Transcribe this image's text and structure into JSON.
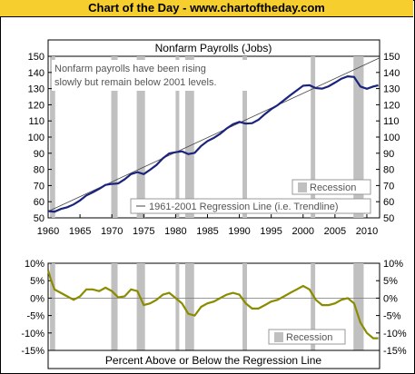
{
  "banner": "Chart of the Day - www.chartoftheday.com",
  "chart_data": [
    {
      "type": "line",
      "title": "Nonfarm Payrolls (Jobs)",
      "annotation_lines": [
        "Nonfarm payrolls have been rising",
        "slowly but remain below 2001 levels."
      ],
      "xlim": [
        1960,
        2012
      ],
      "ylim": [
        50,
        150
      ],
      "x_ticks": [
        "1960",
        "1965",
        "1970",
        "1975",
        "1980",
        "1985",
        "1990",
        "1995",
        "2000",
        "2005",
        "2010"
      ],
      "y_ticks": [
        "50",
        "60",
        "70",
        "80",
        "90",
        "100",
        "110",
        "120",
        "130",
        "140",
        "150"
      ],
      "legend": {
        "recession": "Recession",
        "trendline": "1961-2001 Regression Line (i.e. Trendline)"
      },
      "recessions": [
        [
          1960.3,
          1961.1
        ],
        [
          1969.9,
          1970.9
        ],
        [
          1973.9,
          1975.2
        ],
        [
          1980.0,
          1980.5
        ],
        [
          1981.5,
          1982.9
        ],
        [
          1990.5,
          1991.2
        ],
        [
          2001.2,
          2001.9
        ],
        [
          2007.9,
          2009.5
        ]
      ],
      "trendline": [
        [
          1960,
          54
        ],
        [
          2012,
          149
        ]
      ],
      "series": [
        {
          "name": "Nonfarm Payrolls",
          "color": "#1a237e",
          "x": [
            1960,
            1961,
            1962,
            1963,
            1964,
            1965,
            1966,
            1967,
            1968,
            1969,
            1970,
            1971,
            1972,
            1973,
            1974,
            1975,
            1976,
            1977,
            1978,
            1979,
            1980,
            1981,
            1982,
            1983,
            1984,
            1985,
            1986,
            1987,
            1988,
            1989,
            1990,
            1991,
            1992,
            1993,
            1994,
            1995,
            1996,
            1997,
            1998,
            1999,
            2000,
            2001,
            2002,
            2003,
            2004,
            2005,
            2006,
            2007,
            2008,
            2009,
            2010,
            2011,
            2011.8
          ],
          "y": [
            54.2,
            53.8,
            55.5,
            56.6,
            58.3,
            60.8,
            63.9,
            65.8,
            67.9,
            70.4,
            71.0,
            71.3,
            73.8,
            77.1,
            78.3,
            77.1,
            79.8,
            82.7,
            86.8,
            89.9,
            90.6,
            91.2,
            89.5,
            90.2,
            94.5,
            97.5,
            99.5,
            102.1,
            105.3,
            107.9,
            109.4,
            108.3,
            108.6,
            110.7,
            114.2,
            117.3,
            119.7,
            122.8,
            125.9,
            128.9,
            131.8,
            132.1,
            130.3,
            130.0,
            131.4,
            133.7,
            136.1,
            137.6,
            137.2,
            131.3,
            129.9,
            131.3,
            132.0
          ]
        }
      ]
    },
    {
      "type": "line",
      "xlabel": "Percent Above or Below the Regression Line",
      "xlim": [
        1960,
        2012
      ],
      "ylim": [
        -15,
        10
      ],
      "y_ticks": [
        "10%",
        "5%",
        "0%",
        "-5%",
        "-10%",
        "-15%"
      ],
      "legend": {
        "recession": "Recession"
      },
      "series": [
        {
          "name": "Percent above/below trendline",
          "color": "#8b8b00",
          "x": [
            1960,
            1960.4,
            1961,
            1962,
            1963,
            1964,
            1965,
            1966,
            1967,
            1968,
            1969,
            1970,
            1971,
            1972,
            1973,
            1974,
            1975,
            1976,
            1977,
            1978,
            1979,
            1980,
            1981,
            1982,
            1983,
            1984,
            1985,
            1986,
            1987,
            1988,
            1989,
            1990,
            1991,
            1992,
            1993,
            1994,
            1995,
            1996,
            1997,
            1998,
            1999,
            2000,
            2001,
            2002,
            2003,
            2004,
            2005,
            2006,
            2007,
            2008,
            2009,
            2010,
            2011,
            2011.8
          ],
          "y": [
            8.0,
            5.5,
            2.5,
            1.5,
            0.5,
            -0.5,
            0.5,
            2.5,
            2.5,
            2.0,
            3.0,
            2.0,
            0.2,
            0.5,
            2.5,
            2.0,
            -2.0,
            -1.5,
            -0.5,
            1.0,
            1.5,
            0.0,
            -1.5,
            -4.5,
            -5.0,
            -2.5,
            -1.5,
            -1.0,
            0.0,
            1.0,
            1.5,
            1.0,
            -1.5,
            -3.0,
            -3.0,
            -2.0,
            -1.0,
            -0.5,
            0.5,
            1.5,
            2.5,
            3.5,
            2.5,
            -0.5,
            -2.0,
            -2.0,
            -1.5,
            -0.5,
            0.0,
            -1.5,
            -7.0,
            -10.0,
            -11.5,
            -11.5
          ]
        }
      ]
    }
  ]
}
